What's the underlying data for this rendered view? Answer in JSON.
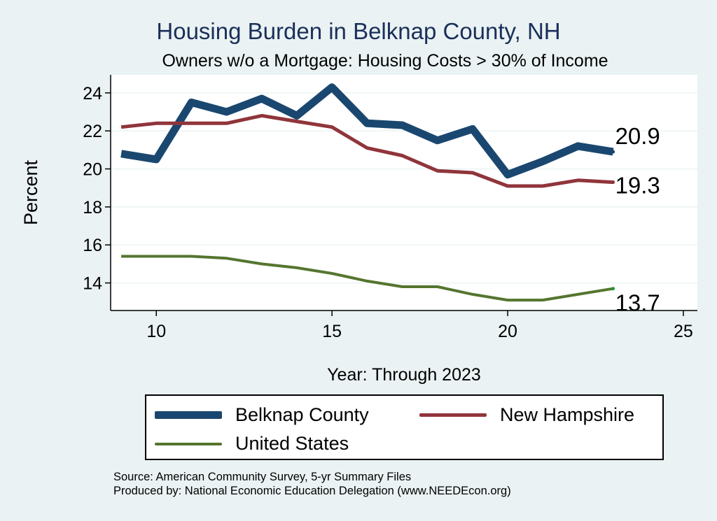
{
  "chart_data": {
    "type": "line",
    "title": "Housing Burden in Belknap County, NH",
    "subtitle": "Owners w/o a Mortgage: Housing Costs > 30% of Income",
    "xlabel": "Year: Through 2023",
    "ylabel": "Percent",
    "xlim": [
      8.7,
      25.4
    ],
    "ylim": [
      12.55,
      24.95
    ],
    "x_ticks": [
      10,
      15,
      20,
      25
    ],
    "y_ticks": [
      14,
      16,
      18,
      20,
      22,
      24
    ],
    "grid": true,
    "legend_position": "bottom",
    "x": [
      9,
      10,
      11,
      12,
      13,
      14,
      15,
      16,
      17,
      18,
      19,
      20,
      21,
      22,
      23
    ],
    "series": [
      {
        "name": "Belknap County",
        "color": "#1a476f",
        "values": [
          20.8,
          20.5,
          23.5,
          23.0,
          23.7,
          22.8,
          24.3,
          22.4,
          22.3,
          21.5,
          22.1,
          19.7,
          20.4,
          21.2,
          20.9
        ],
        "end_label": "20.9"
      },
      {
        "name": "New Hampshire",
        "color": "#90353b",
        "values": [
          22.2,
          22.4,
          22.4,
          22.4,
          22.8,
          22.5,
          22.2,
          21.1,
          20.7,
          19.9,
          19.8,
          19.1,
          19.1,
          19.4,
          19.3
        ],
        "end_label": "19.3"
      },
      {
        "name": "United States",
        "color": "#55752f",
        "values": [
          15.4,
          15.4,
          15.4,
          15.3,
          15.0,
          14.8,
          14.5,
          14.1,
          13.8,
          13.8,
          13.4,
          13.1,
          13.1,
          13.4,
          13.7
        ],
        "end_label": "13.7"
      }
    ]
  },
  "footer": {
    "source": "Source: American Community Survey, 5-yr Summary Files",
    "produced": "Produced by: National Economic Education Delegation (www.NEEDEcon.org)"
  }
}
